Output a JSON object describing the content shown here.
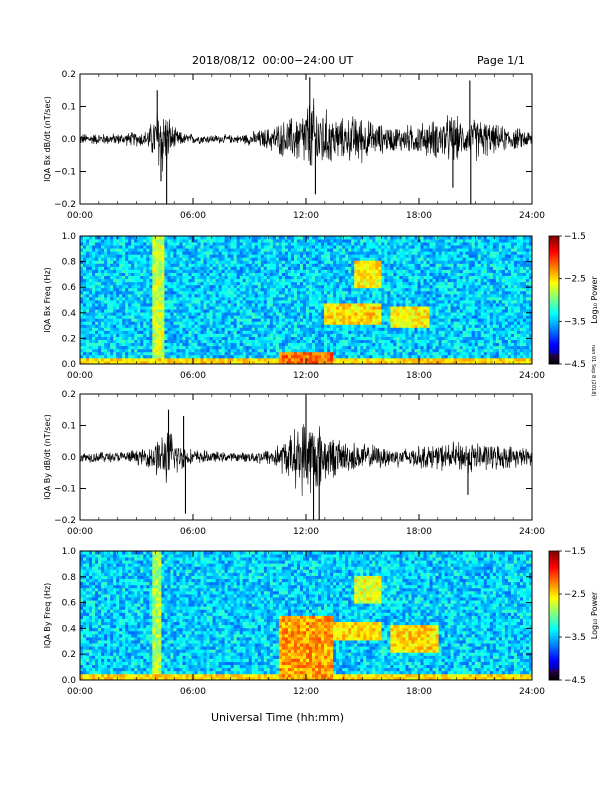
{
  "header": {
    "title": "2018/08/12  00:00−24:00 UT",
    "page": "Page 1/1",
    "stamp": "nan 01 Sep 8 (2018)"
  },
  "xlabel": "Universal Time (hh:mm)",
  "chart_data": [
    {
      "type": "line",
      "ylabel": "IQA Bx dB/dt (nT/sec)",
      "xlim": [
        0,
        24
      ],
      "ylim": [
        -0.2,
        0.2
      ],
      "xticks": [
        "00:00",
        "06:00",
        "12:00",
        "18:00",
        "24:00"
      ],
      "yticks": [
        "−0.2",
        "−0.1",
        "0.0",
        "0.1",
        "0.2"
      ],
      "ytick_values": [
        -0.2,
        -0.1,
        0.0,
        0.1,
        0.2
      ],
      "envelope": {
        "hours": [
          0,
          2,
          3.5,
          3.9,
          4.1,
          4.3,
          4.6,
          5,
          5.5,
          7,
          8.5,
          10,
          11,
          11.8,
          12.3,
          12.8,
          13.3,
          14,
          14.8,
          15.5,
          16.5,
          17.5,
          18.3,
          19,
          19.8,
          20.5,
          21.1,
          22,
          23,
          24
        ],
        "amplitude": [
          0.02,
          0.02,
          0.03,
          0.07,
          0.12,
          0.15,
          0.1,
          0.04,
          0.02,
          0.015,
          0.015,
          0.04,
          0.07,
          0.1,
          0.15,
          0.12,
          0.09,
          0.07,
          0.09,
          0.06,
          0.045,
          0.05,
          0.06,
          0.07,
          0.09,
          0.05,
          0.08,
          0.05,
          0.04,
          0.03
        ]
      },
      "spikes": [
        {
          "hour": 4.1,
          "value": 0.15
        },
        {
          "hour": 4.3,
          "value": -0.13
        },
        {
          "hour": 4.6,
          "value": -0.21
        },
        {
          "hour": 12.2,
          "value": 0.19
        },
        {
          "hour": 12.5,
          "value": -0.17
        },
        {
          "hour": 19.8,
          "value": -0.15
        },
        {
          "hour": 20.7,
          "value": 0.18
        },
        {
          "hour": 20.75,
          "value": -0.22
        }
      ]
    },
    {
      "type": "heatmap",
      "ylabel": "IQA Bx Freq (Hz)",
      "colorbar_label": "Log₁₀ Power",
      "xlim": [
        0,
        24
      ],
      "ylim": [
        0,
        1.0
      ],
      "zlim": [
        -4.5,
        -1.5
      ],
      "xticks": [
        "00:00",
        "06:00",
        "12:00",
        "18:00",
        "24:00"
      ],
      "yticks": [
        "0.0",
        "0.2",
        "0.4",
        "0.6",
        "0.8",
        "1.0"
      ],
      "ytick_values": [
        0,
        0.2,
        0.4,
        0.6,
        0.8,
        1.0
      ],
      "cticks": [
        "−4.5",
        "−3.5",
        "−2.5",
        "−1.5"
      ],
      "ctick_values": [
        -4.5,
        -3.5,
        -2.5,
        -1.5
      ],
      "features": [
        {
          "t0": 3.9,
          "t1": 4.4,
          "f0": 0.0,
          "f1": 1.0,
          "level": -2.9
        },
        {
          "t0": 10.5,
          "t1": 13.5,
          "f0": 0.0,
          "f1": 0.1,
          "level": -2.2
        },
        {
          "t0": 13.0,
          "t1": 16.0,
          "f0": 0.3,
          "f1": 0.48,
          "level": -2.6
        },
        {
          "t0": 14.5,
          "t1": 16.0,
          "f0": 0.6,
          "f1": 0.8,
          "level": -2.7
        },
        {
          "t0": 16.5,
          "t1": 18.5,
          "f0": 0.28,
          "f1": 0.45,
          "level": -2.7
        },
        {
          "t0": 17.5,
          "t1": 21.0,
          "f0": 0.0,
          "f1": 0.05,
          "level": -2.6
        }
      ]
    },
    {
      "type": "line",
      "ylabel": "IQA By dB/dt (nT/sec)",
      "xlim": [
        0,
        24
      ],
      "ylim": [
        -0.2,
        0.2
      ],
      "xticks": [
        "00:00",
        "06:00",
        "12:00",
        "18:00",
        "24:00"
      ],
      "yticks": [
        "−0.2",
        "−0.1",
        "0.0",
        "0.1",
        "0.2"
      ],
      "ytick_values": [
        -0.2,
        -0.1,
        0.0,
        0.1,
        0.2
      ],
      "envelope": {
        "hours": [
          0,
          2,
          3.5,
          4.2,
          4.8,
          5.2,
          5.8,
          7,
          8.5,
          10,
          11,
          11.6,
          12.1,
          12.6,
          13.2,
          14,
          15,
          16,
          17,
          18,
          19.5,
          20.6,
          21.5,
          23,
          24
        ],
        "amplitude": [
          0.02,
          0.02,
          0.03,
          0.08,
          0.1,
          0.06,
          0.03,
          0.02,
          0.015,
          0.03,
          0.07,
          0.12,
          0.15,
          0.13,
          0.08,
          0.06,
          0.05,
          0.04,
          0.035,
          0.04,
          0.05,
          0.06,
          0.05,
          0.04,
          0.03
        ]
      },
      "spikes": [
        {
          "hour": 4.7,
          "value": 0.15
        },
        {
          "hour": 5.5,
          "value": 0.13
        },
        {
          "hour": 5.6,
          "value": -0.18
        },
        {
          "hour": 12.0,
          "value": 0.19
        },
        {
          "hour": 12.4,
          "value": -0.21
        },
        {
          "hour": 12.7,
          "value": -0.2
        },
        {
          "hour": 20.6,
          "value": -0.12
        }
      ]
    },
    {
      "type": "heatmap",
      "ylabel": "IQA By Freq (Hz)",
      "colorbar_label": "Log₁₀ Power",
      "xlim": [
        0,
        24
      ],
      "ylim": [
        0,
        1.0
      ],
      "zlim": [
        -4.5,
        -1.5
      ],
      "xticks": [
        "00:00",
        "06:00",
        "12:00",
        "18:00",
        "24:00"
      ],
      "yticks": [
        "0.0",
        "0.2",
        "0.4",
        "0.6",
        "0.8",
        "1.0"
      ],
      "ytick_values": [
        0,
        0.2,
        0.4,
        0.6,
        0.8,
        1.0
      ],
      "cticks": [
        "−4.5",
        "−3.5",
        "−2.5",
        "−1.5"
      ],
      "ctick_values": [
        -4.5,
        -3.5,
        -2.5,
        -1.5
      ],
      "features": [
        {
          "t0": 3.8,
          "t1": 4.3,
          "f0": 0.0,
          "f1": 1.0,
          "level": -3.0
        },
        {
          "t0": 10.5,
          "t1": 13.5,
          "f0": 0.0,
          "f1": 0.5,
          "level": -2.4
        },
        {
          "t0": 13.0,
          "t1": 16.0,
          "f0": 0.3,
          "f1": 0.45,
          "level": -2.6
        },
        {
          "t0": 14.5,
          "t1": 16.0,
          "f0": 0.6,
          "f1": 0.8,
          "level": -2.8
        },
        {
          "t0": 16.5,
          "t1": 19.0,
          "f0": 0.22,
          "f1": 0.42,
          "level": -2.6
        }
      ]
    }
  ]
}
